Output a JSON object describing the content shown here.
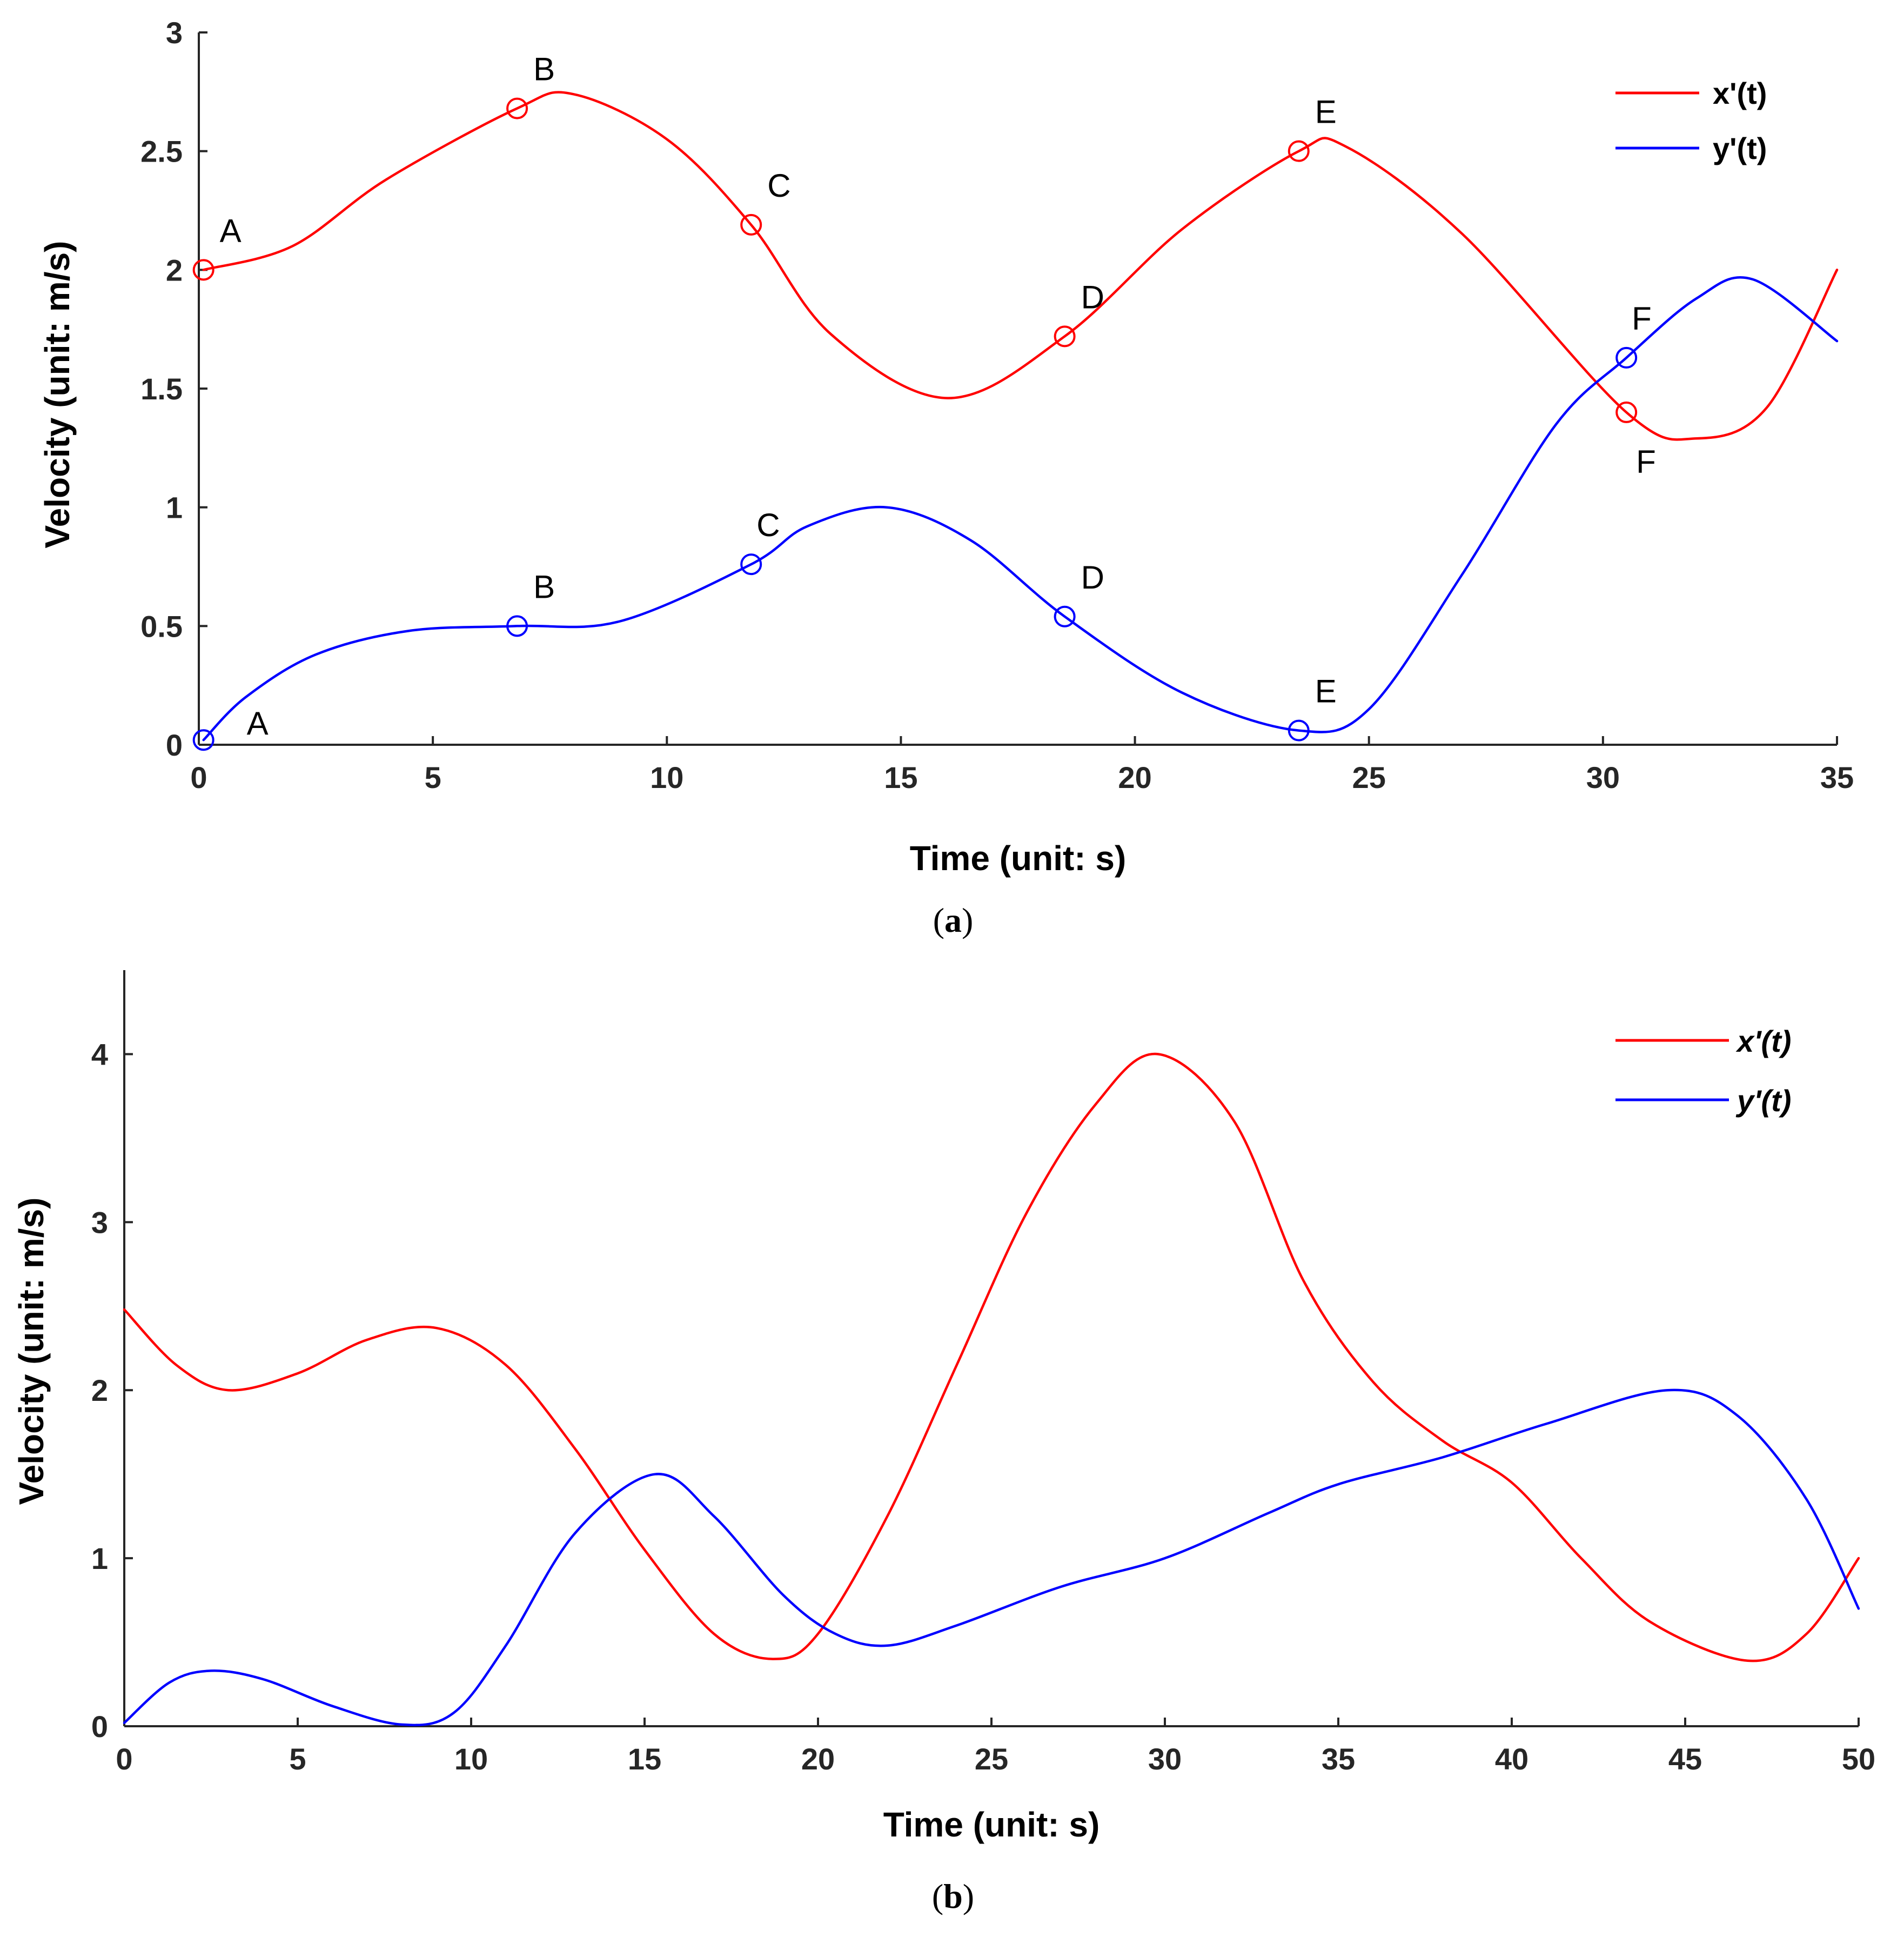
{
  "chart_data": [
    {
      "type": "line",
      "panel": "a",
      "caption_label": "a",
      "xlabel": "Time (unit: s)",
      "ylabel": "Velocity (unit: m/s)",
      "xlim": [
        0,
        35
      ],
      "ylim": [
        0,
        3
      ],
      "xticks": [
        0,
        5,
        10,
        15,
        20,
        25,
        30,
        35
      ],
      "yticks": [
        0,
        0.5,
        1,
        1.5,
        2,
        2.5,
        3
      ],
      "ytick_labels": [
        "0",
        "0.5",
        "1",
        "1.5",
        "2",
        "2.5",
        "3"
      ],
      "legend_position": "top-right",
      "legend_italic": false,
      "series": [
        {
          "name": "x'(t)",
          "color": "#ff0000",
          "x": [
            0.1,
            2,
            4,
            6.8,
            8,
            10,
            11.8,
            13.5,
            16,
            18.5,
            21,
            23.5,
            24.5,
            27,
            30.5,
            32,
            33.5,
            35
          ],
          "y": [
            2.0,
            2.1,
            2.38,
            2.68,
            2.74,
            2.55,
            2.19,
            1.73,
            1.46,
            1.72,
            2.17,
            2.5,
            2.52,
            2.15,
            1.4,
            1.29,
            1.42,
            2.0
          ],
          "markers": [
            {
              "label": "A",
              "x": 0.1,
              "y": 2.0,
              "label_pos": "above-right"
            },
            {
              "label": "B",
              "x": 6.8,
              "y": 2.68,
              "label_pos": "above-right"
            },
            {
              "label": "C",
              "x": 11.8,
              "y": 2.19,
              "label_pos": "above-right"
            },
            {
              "label": "D",
              "x": 18.5,
              "y": 1.72,
              "label_pos": "above-right"
            },
            {
              "label": "E",
              "x": 23.5,
              "y": 2.5,
              "label_pos": "above-right"
            },
            {
              "label": "F",
              "x": 30.5,
              "y": 1.4,
              "label_pos": "below"
            }
          ]
        },
        {
          "name": "y'(t)",
          "color": "#0000ff",
          "x": [
            0.1,
            1,
            2.5,
            4.5,
            6.8,
            9,
            11.8,
            13,
            14.7,
            16.5,
            18.5,
            21,
            23.5,
            25,
            27,
            29,
            30.5,
            32,
            33.2,
            35
          ],
          "y": [
            0.02,
            0.2,
            0.38,
            0.48,
            0.5,
            0.52,
            0.76,
            0.92,
            1.0,
            0.86,
            0.54,
            0.22,
            0.06,
            0.15,
            0.72,
            1.35,
            1.63,
            1.88,
            1.96,
            1.7
          ],
          "markers": [
            {
              "label": "A",
              "x": 0.1,
              "y": 0.02,
              "label_pos": "right"
            },
            {
              "label": "B",
              "x": 6.8,
              "y": 0.5,
              "label_pos": "above-right"
            },
            {
              "label": "C",
              "x": 11.8,
              "y": 0.76,
              "label_pos": "above"
            },
            {
              "label": "D",
              "x": 18.5,
              "y": 0.54,
              "label_pos": "above-right"
            },
            {
              "label": "E",
              "x": 23.5,
              "y": 0.06,
              "label_pos": "above-right"
            },
            {
              "label": "F",
              "x": 30.5,
              "y": 1.63,
              "label_pos": "above"
            }
          ]
        }
      ]
    },
    {
      "type": "line",
      "panel": "b",
      "caption_label": "b",
      "xlabel": "Time (unit: s)",
      "ylabel": "Velocity (unit: m/s)",
      "xlim": [
        0,
        50
      ],
      "ylim": [
        0,
        4.5
      ],
      "xticks": [
        0,
        5,
        10,
        15,
        20,
        25,
        30,
        35,
        40,
        45,
        50
      ],
      "yticks": [
        0,
        1,
        2,
        3,
        4
      ],
      "ytick_labels": [
        "0",
        "1",
        "2",
        "3",
        "4"
      ],
      "legend_position": "top-right",
      "legend_italic": true,
      "series": [
        {
          "name": "x'(t)",
          "color": "#ff0000",
          "x": [
            0,
            1.5,
            3,
            5,
            7,
            9,
            11,
            13,
            15,
            17,
            18.7,
            20,
            22,
            24,
            26,
            28,
            29.8,
            32,
            34,
            36,
            38,
            40,
            42,
            44,
            46.8,
            48.5,
            50
          ],
          "y": [
            2.48,
            2.15,
            2.0,
            2.1,
            2.3,
            2.37,
            2.15,
            1.65,
            1.05,
            0.55,
            0.4,
            0.55,
            1.25,
            2.15,
            3.05,
            3.7,
            4.0,
            3.6,
            2.65,
            2.05,
            1.7,
            1.45,
            1.0,
            0.62,
            0.39,
            0.55,
            1.0
          ],
          "markers": []
        },
        {
          "name": "y'(t)",
          "color": "#0000ff",
          "x": [
            0,
            1.3,
            2.5,
            4,
            6,
            8,
            9.5,
            11,
            13,
            15.3,
            17,
            19,
            20.5,
            22,
            24,
            27,
            30,
            33,
            35,
            38,
            41,
            44.5,
            46.5,
            48.5,
            50
          ],
          "y": [
            0.02,
            0.26,
            0.33,
            0.28,
            0.12,
            0.01,
            0.08,
            0.48,
            1.15,
            1.5,
            1.25,
            0.78,
            0.55,
            0.48,
            0.6,
            0.83,
            1.0,
            1.27,
            1.44,
            1.6,
            1.8,
            2.0,
            1.85,
            1.35,
            0.7
          ],
          "markers": []
        }
      ]
    }
  ]
}
